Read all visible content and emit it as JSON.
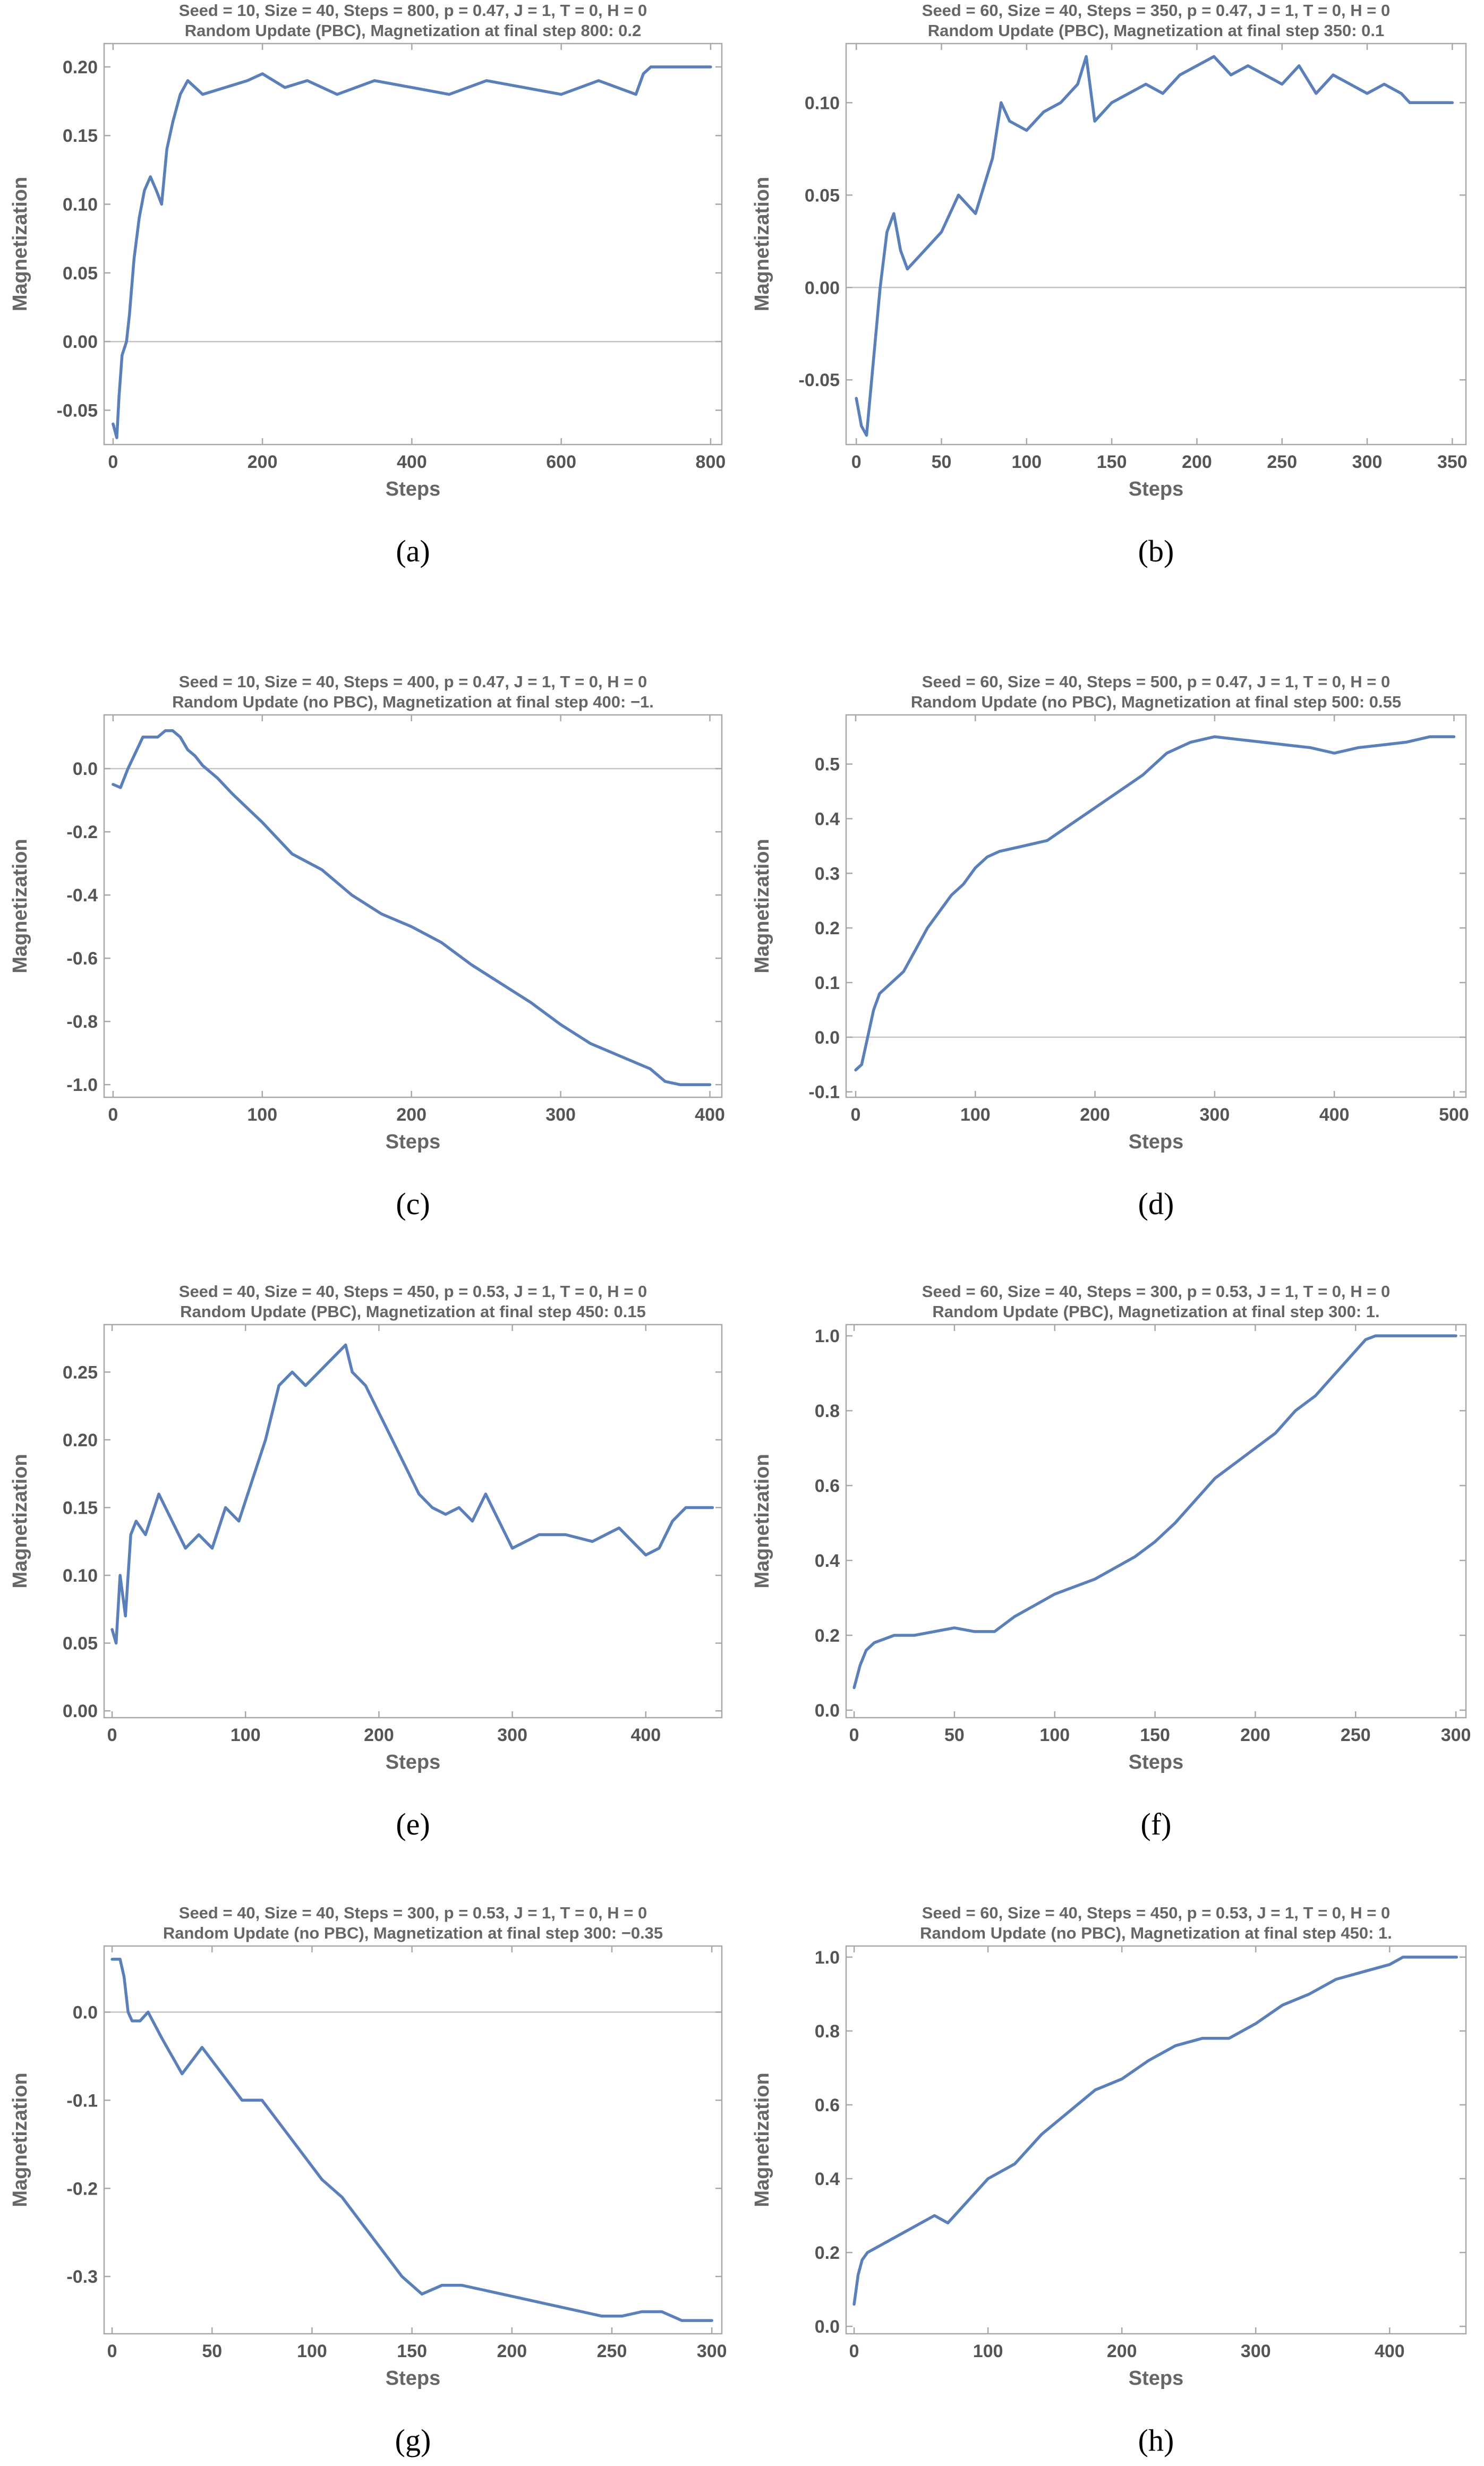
{
  "chart_data": [
    {
      "id": "a",
      "type": "line",
      "caption": "(a)",
      "title": "Seed = 10, Size = 40, Steps = 800, p = 0.47, J = 1, T = 0, H = 0",
      "subtitle": "Random Update (PBC), Magnetization at final step 800: 0.2",
      "xlabel": "Steps",
      "ylabel": "Magnetization",
      "xlim": [
        -12,
        815
      ],
      "ylim": [
        -0.075,
        0.217
      ],
      "xticks": [
        0,
        200,
        400,
        600,
        800
      ],
      "xtick_labels": [
        "0",
        "200",
        "400",
        "600",
        "800"
      ],
      "yticks": [
        -0.05,
        0,
        0.05,
        0.1,
        0.15,
        0.2
      ],
      "ytick_labels": [
        "-0.05",
        "0.00",
        "0.05",
        "0.10",
        "0.15",
        "0.20"
      ],
      "zero_line": true,
      "series": [
        {
          "name": "Magnetization",
          "x": [
            0,
            5,
            8,
            12,
            18,
            22,
            28,
            35,
            42,
            50,
            58,
            65,
            72,
            80,
            90,
            100,
            120,
            150,
            180,
            200,
            230,
            260,
            300,
            350,
            400,
            450,
            500,
            550,
            600,
            650,
            700,
            710,
            720,
            800
          ],
          "y": [
            -0.06,
            -0.07,
            -0.04,
            -0.01,
            0.0,
            0.02,
            0.06,
            0.09,
            0.11,
            0.12,
            0.11,
            0.1,
            0.14,
            0.16,
            0.18,
            0.19,
            0.18,
            0.185,
            0.19,
            0.195,
            0.185,
            0.19,
            0.18,
            0.19,
            0.185,
            0.18,
            0.19,
            0.185,
            0.18,
            0.19,
            0.18,
            0.195,
            0.2,
            0.2
          ]
        }
      ]
    },
    {
      "id": "b",
      "type": "line",
      "caption": "(b)",
      "title": "Seed = 60, Size = 40, Steps = 350, p = 0.47, J = 1, T = 0, H = 0",
      "subtitle": "Random Update (PBC), Magnetization at final step 350: 0.1",
      "xlabel": "Steps",
      "ylabel": "Magnetization",
      "xlim": [
        -6,
        358
      ],
      "ylim": [
        -0.085,
        0.132
      ],
      "xticks": [
        0,
        50,
        100,
        150,
        200,
        250,
        300,
        350
      ],
      "xtick_labels": [
        "0",
        "50",
        "100",
        "150",
        "200",
        "250",
        "300",
        "350"
      ],
      "yticks": [
        -0.05,
        0,
        0.05,
        0.1
      ],
      "ytick_labels": [
        "-0.05",
        "0.00",
        "0.05",
        "0.10"
      ],
      "zero_line": true,
      "series": [
        {
          "name": "Magnetization",
          "x": [
            0,
            3,
            6,
            10,
            14,
            18,
            22,
            26,
            30,
            40,
            50,
            60,
            70,
            80,
            85,
            90,
            100,
            110,
            120,
            130,
            135,
            140,
            150,
            160,
            170,
            180,
            190,
            200,
            210,
            220,
            230,
            240,
            250,
            260,
            270,
            280,
            290,
            300,
            310,
            320,
            325,
            350
          ],
          "y": [
            -0.06,
            -0.075,
            -0.08,
            -0.04,
            0.0,
            0.03,
            0.04,
            0.02,
            0.01,
            0.02,
            0.03,
            0.05,
            0.04,
            0.07,
            0.1,
            0.09,
            0.085,
            0.095,
            0.1,
            0.11,
            0.125,
            0.09,
            0.1,
            0.105,
            0.11,
            0.105,
            0.115,
            0.12,
            0.125,
            0.115,
            0.12,
            0.115,
            0.11,
            0.12,
            0.105,
            0.115,
            0.11,
            0.105,
            0.11,
            0.105,
            0.1,
            0.1
          ]
        }
      ]
    },
    {
      "id": "c",
      "type": "line",
      "caption": "(c)",
      "title": "Seed = 10, Size = 40, Steps = 400, p = 0.47, J = 1, T = 0, H = 0",
      "subtitle": "Random Update (no PBC), Magnetization at final step 400: −1.",
      "xlabel": "Steps",
      "ylabel": "Magnetization",
      "xlim": [
        -6,
        408
      ],
      "ylim": [
        -1.04,
        0.17
      ],
      "xticks": [
        0,
        100,
        200,
        300,
        400
      ],
      "xtick_labels": [
        "0",
        "100",
        "200",
        "300",
        "400"
      ],
      "yticks": [
        -1.0,
        -0.8,
        -0.6,
        -0.4,
        -0.2,
        0.0
      ],
      "ytick_labels": [
        "-1.0",
        "-0.8",
        "-0.6",
        "-0.4",
        "-0.2",
        "0.0"
      ],
      "zero_line": true,
      "series": [
        {
          "name": "Magnetization",
          "x": [
            0,
            5,
            10,
            15,
            20,
            25,
            30,
            35,
            40,
            45,
            50,
            55,
            60,
            70,
            80,
            100,
            120,
            140,
            160,
            180,
            200,
            220,
            240,
            260,
            280,
            300,
            320,
            340,
            360,
            370,
            380,
            400
          ],
          "y": [
            -0.05,
            -0.06,
            0.0,
            0.05,
            0.1,
            0.1,
            0.1,
            0.12,
            0.12,
            0.1,
            0.06,
            0.04,
            0.01,
            -0.03,
            -0.08,
            -0.17,
            -0.27,
            -0.32,
            -0.4,
            -0.46,
            -0.5,
            -0.55,
            -0.62,
            -0.68,
            -0.74,
            -0.81,
            -0.87,
            -0.91,
            -0.95,
            -0.99,
            -1.0,
            -1.0
          ]
        }
      ]
    },
    {
      "id": "d",
      "type": "line",
      "caption": "(d)",
      "title": "Seed = 60, Size = 40, Steps = 500, p = 0.47, J = 1, T = 0, H = 0",
      "subtitle": "Random Update (no PBC), Magnetization at final step 500: 0.55",
      "xlabel": "Steps",
      "ylabel": "Magnetization",
      "xlim": [
        -8,
        510
      ],
      "ylim": [
        -0.11,
        0.59
      ],
      "xticks": [
        0,
        100,
        200,
        300,
        400,
        500
      ],
      "xtick_labels": [
        "0",
        "100",
        "200",
        "300",
        "400",
        "500"
      ],
      "yticks": [
        -0.1,
        0,
        0.1,
        0.2,
        0.3,
        0.4,
        0.5
      ],
      "ytick_labels": [
        "-0.1",
        "0.0",
        "0.1",
        "0.2",
        "0.3",
        "0.4",
        "0.5"
      ],
      "zero_line": true,
      "series": [
        {
          "name": "Magnetization",
          "x": [
            0,
            5,
            10,
            15,
            20,
            30,
            40,
            50,
            60,
            70,
            80,
            90,
            100,
            110,
            120,
            140,
            160,
            180,
            200,
            220,
            240,
            260,
            280,
            300,
            320,
            340,
            360,
            380,
            400,
            420,
            440,
            460,
            480,
            500
          ],
          "y": [
            -0.06,
            -0.05,
            0.0,
            0.05,
            0.08,
            0.1,
            0.12,
            0.16,
            0.2,
            0.23,
            0.26,
            0.28,
            0.31,
            0.33,
            0.34,
            0.35,
            0.36,
            0.39,
            0.42,
            0.45,
            0.48,
            0.52,
            0.54,
            0.55,
            0.545,
            0.54,
            0.535,
            0.53,
            0.52,
            0.53,
            0.535,
            0.54,
            0.55,
            0.55
          ]
        }
      ]
    },
    {
      "id": "e",
      "type": "line",
      "caption": "(e)",
      "title": "Seed = 40, Size = 40, Steps = 450, p = 0.53, J = 1, T = 0, H = 0",
      "subtitle": "Random Update (PBC), Magnetization at final step 450: 0.15",
      "xlabel": "Steps",
      "ylabel": "Magnetization",
      "xlim": [
        -6,
        457
      ],
      "ylim": [
        -0.005,
        0.285
      ],
      "xticks": [
        0,
        100,
        200,
        300,
        400
      ],
      "xtick_labels": [
        "0",
        "100",
        "200",
        "300",
        "400"
      ],
      "yticks": [
        0,
        0.05,
        0.1,
        0.15,
        0.2,
        0.25
      ],
      "ytick_labels": [
        "0.00",
        "0.05",
        "0.10",
        "0.15",
        "0.20",
        "0.25"
      ],
      "zero_line": false,
      "series": [
        {
          "name": "Magnetization",
          "x": [
            0,
            3,
            6,
            10,
            14,
            18,
            25,
            35,
            45,
            55,
            65,
            75,
            85,
            95,
            105,
            115,
            125,
            135,
            145,
            155,
            165,
            175,
            180,
            190,
            200,
            210,
            220,
            230,
            240,
            250,
            260,
            270,
            280,
            290,
            300,
            310,
            320,
            340,
            360,
            380,
            400,
            410,
            420,
            430,
            450
          ],
          "y": [
            0.06,
            0.05,
            0.1,
            0.07,
            0.13,
            0.14,
            0.13,
            0.16,
            0.14,
            0.12,
            0.13,
            0.12,
            0.15,
            0.14,
            0.17,
            0.2,
            0.24,
            0.25,
            0.24,
            0.25,
            0.26,
            0.27,
            0.25,
            0.24,
            0.22,
            0.2,
            0.18,
            0.16,
            0.15,
            0.145,
            0.15,
            0.14,
            0.16,
            0.14,
            0.12,
            0.125,
            0.13,
            0.13,
            0.125,
            0.135,
            0.115,
            0.12,
            0.14,
            0.15,
            0.15
          ]
        }
      ]
    },
    {
      "id": "f",
      "type": "line",
      "caption": "(f)",
      "title": "Seed = 60, Size = 40, Steps = 300, p = 0.53, J = 1, T = 0, H = 0",
      "subtitle": "Random Update (PBC), Magnetization at final step 300: 1.",
      "xlabel": "Steps",
      "ylabel": "Magnetization",
      "xlim": [
        -4,
        305
      ],
      "ylim": [
        -0.02,
        1.03
      ],
      "xticks": [
        0,
        50,
        100,
        150,
        200,
        250,
        300
      ],
      "xtick_labels": [
        "0",
        "50",
        "100",
        "150",
        "200",
        "250",
        "300"
      ],
      "yticks": [
        0,
        0.2,
        0.4,
        0.6,
        0.8,
        1.0
      ],
      "ytick_labels": [
        "0.0",
        "0.2",
        "0.4",
        "0.6",
        "0.8",
        "1.0"
      ],
      "zero_line": false,
      "series": [
        {
          "name": "Magnetization",
          "x": [
            0,
            3,
            6,
            10,
            20,
            30,
            40,
            50,
            60,
            70,
            80,
            90,
            100,
            110,
            120,
            130,
            140,
            150,
            160,
            170,
            180,
            190,
            200,
            210,
            220,
            230,
            240,
            250,
            255,
            260,
            300
          ],
          "y": [
            0.06,
            0.12,
            0.16,
            0.18,
            0.2,
            0.2,
            0.21,
            0.22,
            0.21,
            0.21,
            0.25,
            0.28,
            0.31,
            0.33,
            0.35,
            0.38,
            0.41,
            0.45,
            0.5,
            0.56,
            0.62,
            0.66,
            0.7,
            0.74,
            0.8,
            0.84,
            0.9,
            0.96,
            0.99,
            1.0,
            1.0
          ]
        }
      ]
    },
    {
      "id": "g",
      "type": "line",
      "caption": "(g)",
      "title": "Seed = 40, Size = 40, Steps = 300, p = 0.53, J = 1, T = 0, H = 0",
      "subtitle": "Random Update (no PBC), Magnetization at final step 300: −0.35",
      "xlabel": "Steps",
      "ylabel": "Magnetization",
      "xlim": [
        -4,
        305
      ],
      "ylim": [
        -0.365,
        0.075
      ],
      "xticks": [
        0,
        50,
        100,
        150,
        200,
        250,
        300
      ],
      "xtick_labels": [
        "0",
        "50",
        "100",
        "150",
        "200",
        "250",
        "300"
      ],
      "yticks": [
        -0.3,
        -0.2,
        -0.1,
        0.0
      ],
      "ytick_labels": [
        "-0.3",
        "-0.2",
        "-0.1",
        "0.0"
      ],
      "zero_line": true,
      "series": [
        {
          "name": "Magnetization",
          "x": [
            0,
            4,
            6,
            8,
            10,
            14,
            18,
            25,
            35,
            45,
            55,
            65,
            75,
            85,
            95,
            105,
            115,
            125,
            135,
            145,
            155,
            165,
            175,
            185,
            195,
            205,
            215,
            225,
            235,
            245,
            255,
            265,
            275,
            285,
            300
          ],
          "y": [
            0.06,
            0.06,
            0.04,
            0.0,
            -0.01,
            -0.01,
            0.0,
            -0.03,
            -0.07,
            -0.04,
            -0.07,
            -0.1,
            -0.1,
            -0.13,
            -0.16,
            -0.19,
            -0.21,
            -0.24,
            -0.27,
            -0.3,
            -0.32,
            -0.31,
            -0.31,
            -0.315,
            -0.32,
            -0.325,
            -0.33,
            -0.335,
            -0.34,
            -0.345,
            -0.345,
            -0.34,
            -0.34,
            -0.35,
            -0.35
          ]
        }
      ]
    },
    {
      "id": "h",
      "type": "line",
      "caption": "(h)",
      "title": "Seed = 60, Size = 40, Steps = 450, p = 0.53, J = 1, T = 0, H = 0",
      "subtitle": "Random Update (no PBC), Magnetization at final step 450: 1.",
      "xlabel": "Steps",
      "ylabel": "Magnetization",
      "xlim": [
        -6,
        457
      ],
      "ylim": [
        -0.02,
        1.03
      ],
      "xticks": [
        0,
        100,
        200,
        300,
        400
      ],
      "xtick_labels": [
        "0",
        "100",
        "200",
        "300",
        "400"
      ],
      "yticks": [
        0,
        0.2,
        0.4,
        0.6,
        0.8,
        1.0
      ],
      "ytick_labels": [
        "0.0",
        "0.2",
        "0.4",
        "0.6",
        "0.8",
        "1.0"
      ],
      "zero_line": false,
      "series": [
        {
          "name": "Magnetization",
          "x": [
            0,
            3,
            6,
            10,
            20,
            30,
            40,
            50,
            60,
            70,
            80,
            90,
            100,
            120,
            140,
            160,
            180,
            200,
            220,
            240,
            260,
            280,
            300,
            320,
            340,
            360,
            380,
            400,
            410,
            420,
            450
          ],
          "y": [
            0.06,
            0.14,
            0.18,
            0.2,
            0.22,
            0.24,
            0.26,
            0.28,
            0.3,
            0.28,
            0.32,
            0.36,
            0.4,
            0.44,
            0.52,
            0.58,
            0.64,
            0.67,
            0.72,
            0.76,
            0.78,
            0.78,
            0.82,
            0.87,
            0.9,
            0.94,
            0.96,
            0.98,
            1.0,
            1.0,
            1.0
          ]
        }
      ]
    }
  ]
}
